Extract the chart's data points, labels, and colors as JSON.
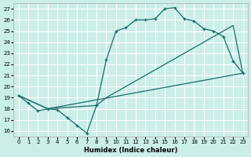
{
  "xlabel": "Humidex (Indice chaleur)",
  "xlim": [
    -0.5,
    23.5
  ],
  "ylim": [
    15.5,
    27.5
  ],
  "xticks": [
    0,
    1,
    2,
    3,
    4,
    5,
    6,
    7,
    8,
    9,
    10,
    11,
    12,
    13,
    14,
    15,
    16,
    17,
    18,
    19,
    20,
    21,
    22,
    23
  ],
  "yticks": [
    16,
    17,
    18,
    19,
    20,
    21,
    22,
    23,
    24,
    25,
    26,
    27
  ],
  "bg_color": "#cbeee9",
  "grid_color": "#ffffff",
  "line_color": "#1a6b6b",
  "curve1_x": [
    0,
    1,
    2,
    3,
    4,
    5,
    6,
    7,
    8,
    9,
    10,
    11,
    12,
    13,
    14,
    15,
    16,
    17,
    18,
    19,
    20,
    21,
    22,
    23
  ],
  "curve1_y": [
    19.2,
    18.5,
    17.8,
    18.0,
    17.9,
    17.2,
    16.5,
    15.8,
    18.3,
    22.4,
    25.0,
    25.3,
    26.0,
    26.0,
    26.1,
    27.0,
    27.1,
    26.1,
    25.9,
    25.2,
    25.0,
    24.5,
    22.3,
    21.2
  ],
  "curve2_x": [
    0,
    3,
    23
  ],
  "curve2_y": [
    19.2,
    18.0,
    21.2
  ],
  "curve3_x": [
    0,
    3,
    8,
    9,
    10,
    11,
    12,
    13,
    14,
    15,
    16,
    17,
    18,
    19,
    20,
    21,
    22,
    23
  ],
  "curve3_y": [
    19.2,
    18.0,
    18.3,
    19.0,
    19.5,
    20.0,
    20.5,
    21.0,
    21.5,
    22.0,
    22.5,
    23.0,
    23.5,
    24.0,
    24.5,
    25.0,
    25.5,
    21.2
  ]
}
